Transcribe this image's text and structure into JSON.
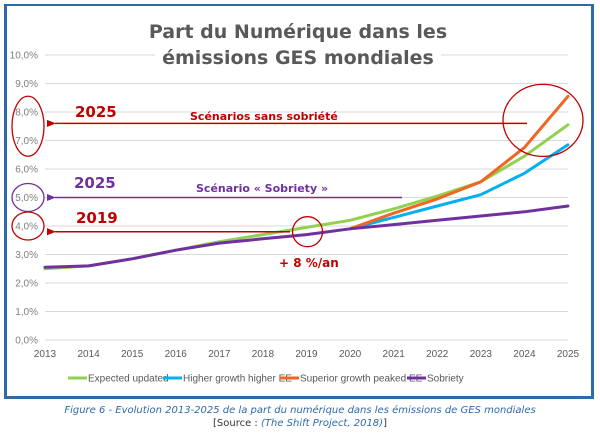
{
  "chart_data": {
    "type": "line",
    "title": "Part du Numérique dans les émissions GES mondiales",
    "title_lines": [
      "Part du Numérique dans les",
      "émissions GES mondiales"
    ],
    "xlabel": "",
    "ylabel": "",
    "x": [
      2013,
      2014,
      2015,
      2016,
      2017,
      2018,
      2019,
      2020,
      2021,
      2022,
      2023,
      2024,
      2025
    ],
    "x_tick_labels": [
      "2013",
      "2014",
      "2015",
      "2016",
      "2017",
      "2018",
      "2019",
      "2020",
      "2021",
      "2022",
      "2023",
      "2024",
      "2025"
    ],
    "ylim": [
      0,
      10
    ],
    "y_ticks": [
      0,
      1,
      2,
      3,
      4,
      5,
      6,
      7,
      8,
      9,
      10
    ],
    "y_tick_labels": [
      "0,0%",
      "1,0%",
      "2,0%",
      "3,0%",
      "4,0%",
      "5,0%",
      "6,0%",
      "7,0%",
      "8,0%",
      "9,0%",
      "10,0%"
    ],
    "grid": true,
    "legend_position": "bottom",
    "series": [
      {
        "name": "Expected updated",
        "color": "#92d050",
        "values": [
          2.5,
          2.6,
          2.85,
          3.15,
          3.45,
          3.7,
          3.95,
          4.2,
          4.6,
          5.05,
          5.55,
          6.45,
          7.55
        ]
      },
      {
        "name": "Higher growth higher EE",
        "color": "#00b0f0",
        "values": [
          null,
          null,
          null,
          null,
          null,
          null,
          null,
          3.9,
          4.3,
          4.7,
          5.1,
          5.85,
          6.85
        ]
      },
      {
        "name": "Superior growth peaked EE",
        "color": "#f26522",
        "values": [
          null,
          null,
          null,
          null,
          null,
          null,
          null,
          3.9,
          4.45,
          4.95,
          5.55,
          6.75,
          8.55
        ]
      },
      {
        "name": "Sobriety",
        "color": "#7030a0",
        "values": [
          2.55,
          2.6,
          2.85,
          3.15,
          3.4,
          3.55,
          3.7,
          3.9,
          4.05,
          4.2,
          4.35,
          4.5,
          4.7
        ]
      }
    ],
    "annotations": [
      {
        "id": "no-sobriety",
        "year_label": "2025",
        "text": "Scénarios sans sobriété",
        "arrow_to_y": 7.6,
        "color": "#c00000",
        "circled_y_range": [
          7,
          8
        ]
      },
      {
        "id": "sobriety",
        "year_label": "2025",
        "text": "Scénario « Sobriety »",
        "arrow_to_y": 5.0,
        "color": "#7030a0",
        "circled_y_range": [
          5,
          5
        ]
      },
      {
        "id": "2019",
        "year_label": "2019",
        "text": "",
        "arrow_to_y": 3.8,
        "color": "#c00000",
        "circled_y_range": [
          4,
          4
        ]
      },
      {
        "id": "growth-rate",
        "text": "+ 8 %/an",
        "color": "#c00000",
        "at_x": 2019,
        "at_y": 3.8
      }
    ]
  },
  "caption": {
    "main": "Figure 6 - Evolution 2013-2025 de la part du numérique dans les émissions de GES mondiales",
    "source_prefix": "[Source : ",
    "source_ref": "(The Shift Project, 2018)",
    "source_suffix": "]"
  }
}
